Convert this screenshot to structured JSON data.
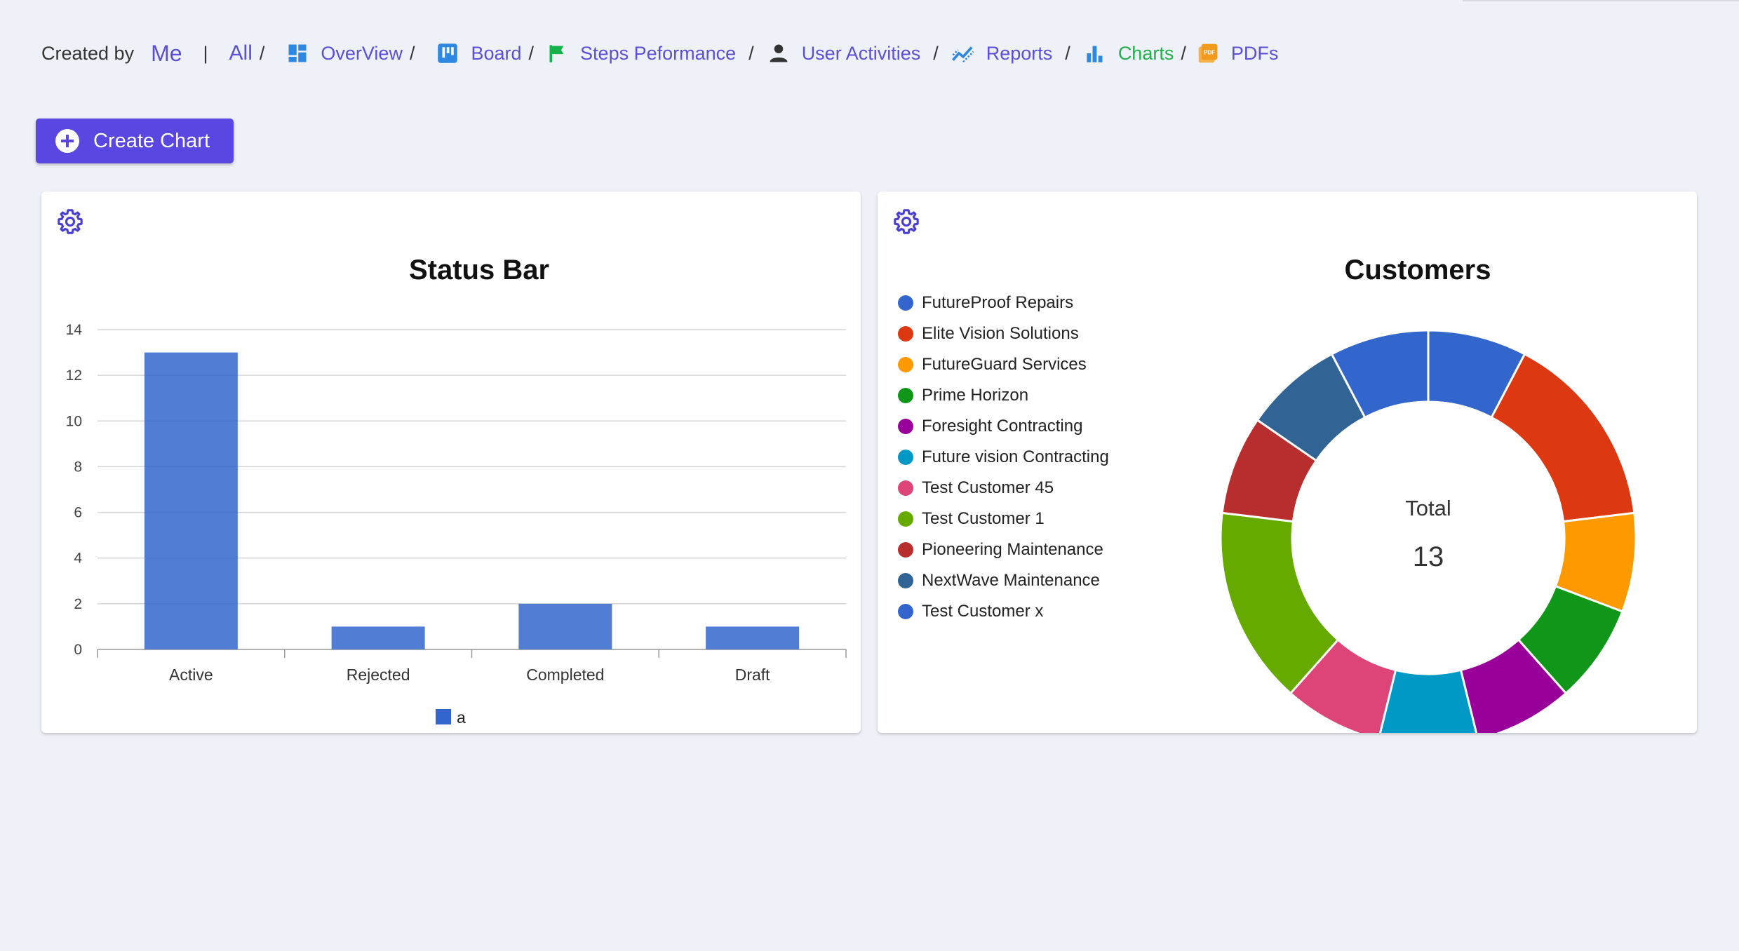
{
  "nav": {
    "created_by_label": "Created by",
    "me_label": "Me",
    "pipe": "|",
    "all_label": "All",
    "separator": "/",
    "items": [
      {
        "label": "OverView",
        "icon": "dashboard-icon",
        "color": "#2e87e0"
      },
      {
        "label": "Board",
        "icon": "board-icon",
        "color": "#2e87e0"
      },
      {
        "label": "Steps Peformance",
        "icon": "flag-icon",
        "color": "#13b24a"
      },
      {
        "label": "User Activities",
        "icon": "person-icon",
        "color": "#333333"
      },
      {
        "label": "Reports",
        "icon": "trend-icon",
        "color": "#2e87e0"
      },
      {
        "label": "Charts",
        "icon": "bar-chart-icon",
        "color": "#2e87e0",
        "active": true
      },
      {
        "label": "PDFs",
        "icon": "pdf-icon",
        "color": "#f29a1b"
      }
    ]
  },
  "create_button": {
    "label": "Create Chart"
  },
  "colors": {
    "accent": "#5a46e0",
    "link": "#5a4fd6",
    "active_link": "#20b04b"
  },
  "chart_data": [
    {
      "type": "bar",
      "title": "Status Bar",
      "categories": [
        "Active",
        "Rejected",
        "Completed",
        "Draft"
      ],
      "series": [
        {
          "name": "a",
          "values": [
            13,
            1,
            2,
            1
          ],
          "color": "#3366cc"
        }
      ],
      "ylim": [
        0,
        14
      ],
      "yticks": [
        0,
        2,
        4,
        6,
        8,
        10,
        12,
        14
      ],
      "grid": true,
      "legend": "bottom"
    },
    {
      "type": "pie",
      "donut": true,
      "title": "Customers",
      "center_label": "Total",
      "center_value": "13",
      "legend": "left",
      "slices": [
        {
          "label": "FutureProof Repairs",
          "value": 1,
          "color": "#3366cc"
        },
        {
          "label": "Elite Vision Solutions",
          "value": 2,
          "color": "#dc3912"
        },
        {
          "label": "FutureGuard Services",
          "value": 1,
          "color": "#ff9900"
        },
        {
          "label": "Prime Horizon",
          "value": 1,
          "color": "#109618"
        },
        {
          "label": "Foresight Contracting",
          "value": 1,
          "color": "#990099"
        },
        {
          "label": "Future vision Contracting",
          "value": 1,
          "color": "#0099c6"
        },
        {
          "label": "Test Customer 45",
          "value": 1,
          "color": "#dd4477"
        },
        {
          "label": "Test Customer 1",
          "value": 2,
          "color": "#66aa00"
        },
        {
          "label": "Pioneering Maintenance",
          "value": 1,
          "color": "#b82e2e"
        },
        {
          "label": "NextWave Maintenance",
          "value": 1,
          "color": "#316395"
        },
        {
          "label": "Test Customer x",
          "value": 1,
          "color": "#3366cc"
        }
      ]
    }
  ]
}
